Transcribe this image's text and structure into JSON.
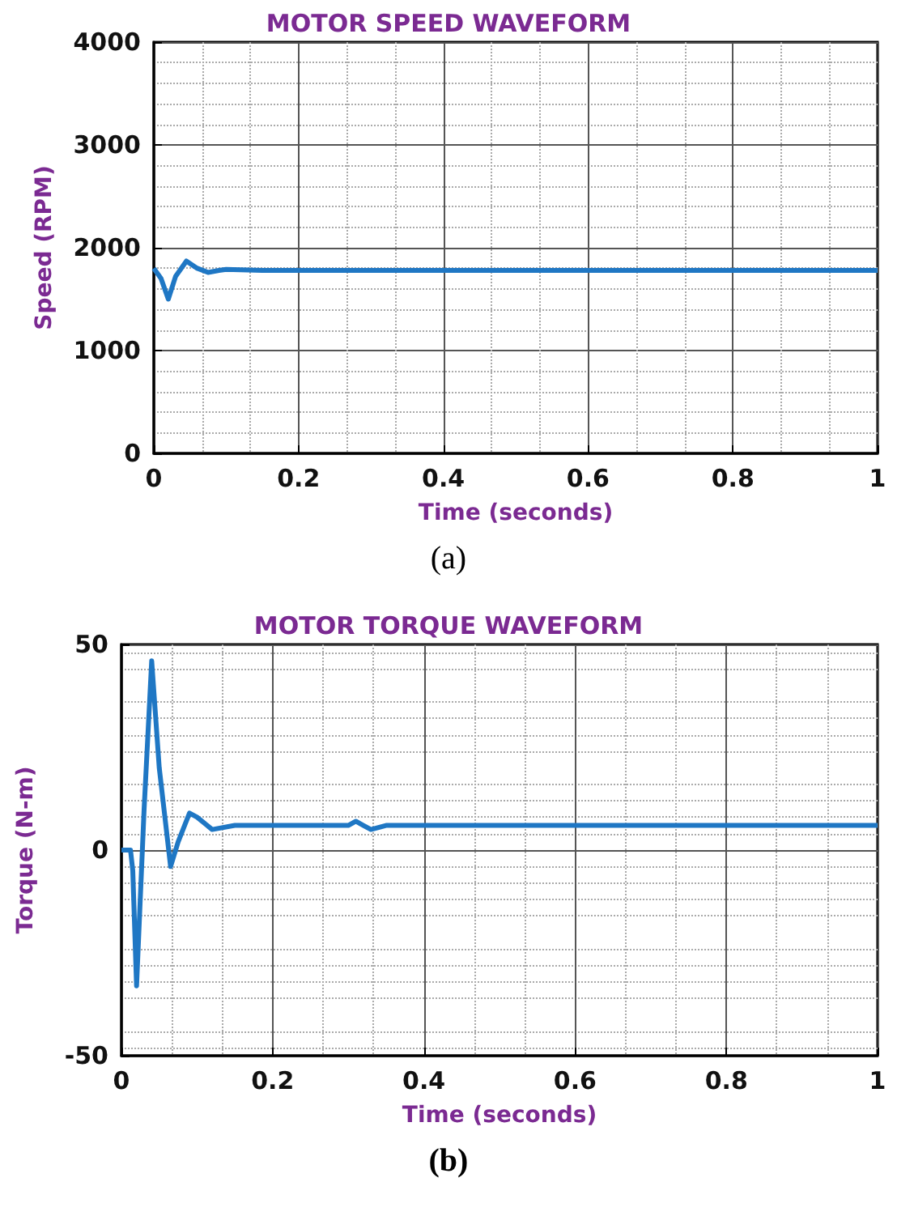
{
  "chart_data": [
    {
      "type": "line",
      "title": "MOTOR SPEED WAVEFORM",
      "xlabel": "Time (seconds)",
      "ylabel": "Speed (RPM)",
      "annotations": [
        "(a)"
      ],
      "x": [
        0,
        0.01,
        0.02,
        0.03,
        0.045,
        0.06,
        0.075,
        0.09,
        0.1,
        0.15,
        0.2,
        0.3,
        0.4,
        0.5,
        0.6,
        0.7,
        0.8,
        0.9,
        1
      ],
      "series": [
        {
          "color": "#1f77c4",
          "values": [
            1800,
            1700,
            1500,
            1720,
            1870,
            1800,
            1760,
            1780,
            1790,
            1780,
            1780,
            1780,
            1780,
            1780,
            1780,
            1780,
            1780,
            1780,
            1780
          ]
        }
      ],
      "xlim": [
        0,
        1
      ],
      "xticks": [
        0,
        0.2,
        0.4,
        0.6,
        0.8,
        1
      ],
      "ylim": [
        0,
        4000
      ],
      "yticks": [
        0,
        1000,
        2000,
        3000,
        4000
      ],
      "grid": true,
      "line_style": "solid",
      "marker": "none"
    },
    {
      "type": "line",
      "title": "MOTOR TORQUE WAVEFORM",
      "xlabel": "Time (seconds)",
      "ylabel": "Torque (N-m)",
      "annotations": [
        "(b)"
      ],
      "x": [
        0,
        0.012,
        0.015,
        0.02,
        0.03,
        0.04,
        0.05,
        0.065,
        0.075,
        0.09,
        0.1,
        0.12,
        0.15,
        0.2,
        0.3,
        0.31,
        0.32,
        0.33,
        0.35,
        0.4,
        0.6,
        0.8,
        1
      ],
      "series": [
        {
          "color": "#1f77c4",
          "values": [
            0,
            0,
            -5,
            -33,
            10,
            46,
            20,
            -4,
            2,
            9,
            8,
            5,
            6,
            6,
            6,
            7,
            6,
            5,
            6,
            6,
            6,
            6,
            6
          ]
        }
      ],
      "xlim": [
        0,
        1
      ],
      "xticks": [
        0,
        0.2,
        0.4,
        0.6,
        0.8,
        1
      ],
      "ylim": [
        -50,
        50
      ],
      "yticks": [
        -50,
        0,
        50
      ],
      "grid": true,
      "line_style": "solid",
      "marker": "none"
    }
  ]
}
